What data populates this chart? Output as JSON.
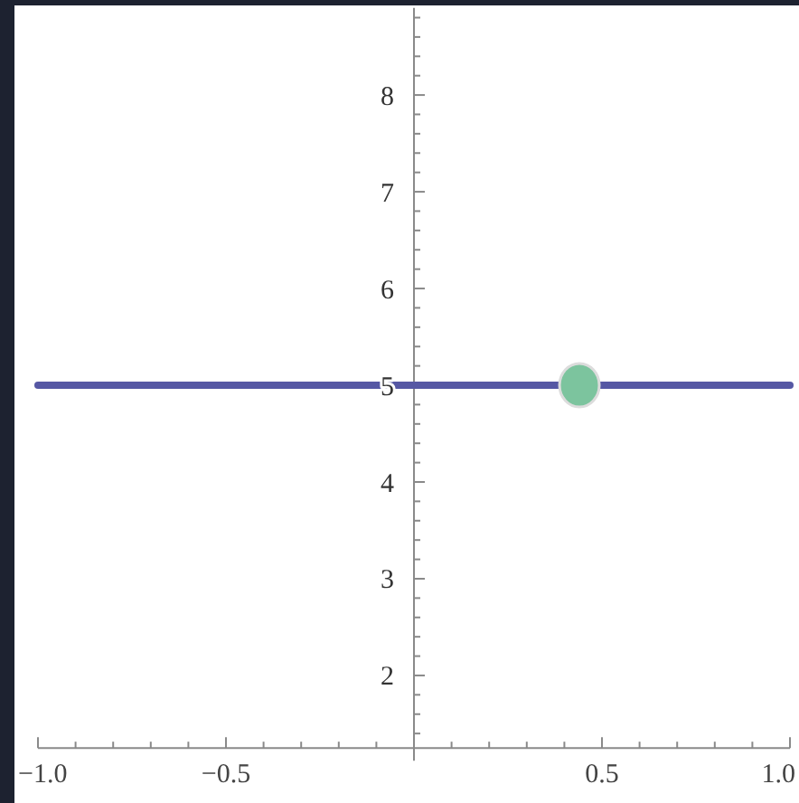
{
  "chart_data": {
    "type": "line",
    "xlim": [
      -1,
      1
    ],
    "ylim": [
      1.25,
      8.9
    ],
    "xticks": [
      {
        "value": -1,
        "label": "−1.0"
      },
      {
        "value": -0.9,
        "label": null
      },
      {
        "value": -0.8,
        "label": null
      },
      {
        "value": -0.7,
        "label": null
      },
      {
        "value": -0.6,
        "label": null
      },
      {
        "value": -0.5,
        "label": "−0.5"
      },
      {
        "value": -0.4,
        "label": null
      },
      {
        "value": -0.3,
        "label": null
      },
      {
        "value": -0.2,
        "label": null
      },
      {
        "value": -0.1,
        "label": null
      },
      {
        "value": 0.1,
        "label": null
      },
      {
        "value": 0.2,
        "label": null
      },
      {
        "value": 0.3,
        "label": null
      },
      {
        "value": 0.4,
        "label": null
      },
      0.5,
      {
        "value": 0.6,
        "label": null
      },
      {
        "value": 0.7,
        "label": null
      },
      {
        "value": 0.8,
        "label": null
      },
      {
        "value": 0.9,
        "label": null
      },
      {
        "value": 1,
        "label": "1.0"
      }
    ],
    "yticks": [
      {
        "value": 1.4,
        "label": null
      },
      {
        "value": 1.6,
        "label": null
      },
      {
        "value": 1.8,
        "label": null
      },
      2,
      {
        "value": 2.2,
        "label": null
      },
      {
        "value": 2.4,
        "label": null
      },
      {
        "value": 2.6,
        "label": null
      },
      {
        "value": 2.8,
        "label": null
      },
      3,
      {
        "value": 3.2,
        "label": null
      },
      {
        "value": 3.4,
        "label": null
      },
      {
        "value": 3.6,
        "label": null
      },
      {
        "value": 3.8,
        "label": null
      },
      4,
      {
        "value": 4.2,
        "label": null
      },
      {
        "value": 4.4,
        "label": null
      },
      {
        "value": 4.6,
        "label": null
      },
      {
        "value": 4.8,
        "label": null
      },
      5,
      {
        "value": 5.2,
        "label": null
      },
      {
        "value": 5.4,
        "label": null
      },
      {
        "value": 5.6,
        "label": null
      },
      {
        "value": 5.8,
        "label": null
      },
      6,
      {
        "value": 6.2,
        "label": null
      },
      {
        "value": 6.4,
        "label": null
      },
      {
        "value": 6.6,
        "label": null
      },
      {
        "value": 6.8,
        "label": null
      },
      7,
      {
        "value": 7.2,
        "label": null
      },
      {
        "value": 7.4,
        "label": null
      },
      {
        "value": 7.6,
        "label": null
      },
      {
        "value": 7.8,
        "label": null
      },
      8,
      {
        "value": 8.2,
        "label": null
      },
      {
        "value": 8.4,
        "label": null
      },
      {
        "value": 8.6,
        "label": null
      },
      {
        "value": 8.8,
        "label": null
      }
    ],
    "series": [
      {
        "color": "#5658a4",
        "x": [
          -1,
          1
        ],
        "values": [
          5,
          5
        ],
        "marker": "none"
      },
      {
        "type": "scatter",
        "color": "#7cc49e",
        "x": [
          0.44
        ],
        "values": [
          5
        ],
        "marker": "circle"
      }
    ]
  }
}
